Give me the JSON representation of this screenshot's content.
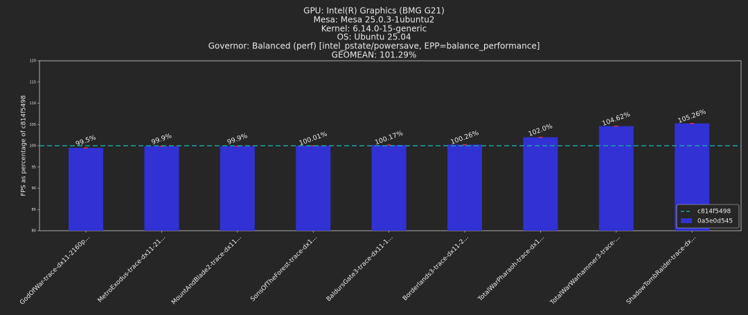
{
  "chart_data": {
    "type": "bar",
    "title_lines": [
      "GPU: Intel(R) Graphics (BMG G21)",
      "Mesa: Mesa 25.0.3-1ubuntu2",
      "Kernel: 6.14.0-15-generic",
      "OS: Ubuntu 25.04",
      "Governor: Balanced (perf) [intel_pstate/powersave, EPP=balance_performance]",
      "GEOMEAN: 101.29%"
    ],
    "y_label": "FPS as percentage of c814f5498",
    "categories": [
      "GodOfWar-trace-dx11-2160p...",
      "MetroExodus-trace-dx11-21...",
      "MountAndBlade2-trace-dx11...",
      "SonsOfTheForest-trace-dx1...",
      "BaldursGate3-trace-dx11-1...",
      "Borderlands3-trace-dx11-2...",
      "TotalWarPharaoh-trace-dx1...",
      "TotalWarWarhammer3-trace-...",
      "ShadowTombRaider-trace-dx..."
    ],
    "series": [
      {
        "name": "0a5e0d545",
        "color": "#3131d4",
        "values": [
          99.5,
          99.9,
          99.9,
          100.01,
          100.17,
          100.26,
          102,
          104.62,
          105.26
        ],
        "value_labels": [
          "99.5%",
          "99.9%",
          "99.9%",
          "100.01%",
          "100.17%",
          "100.26%",
          "102.0%",
          "104.62%",
          "105.26%"
        ]
      }
    ],
    "reference_line": {
      "name": "c814f5498",
      "value": 100,
      "color": "#1aa3a3"
    },
    "ylim": [
      80,
      120
    ],
    "yticks": [
      80,
      85,
      90,
      95,
      100,
      105,
      110,
      115,
      120
    ],
    "legend": "lower right"
  }
}
